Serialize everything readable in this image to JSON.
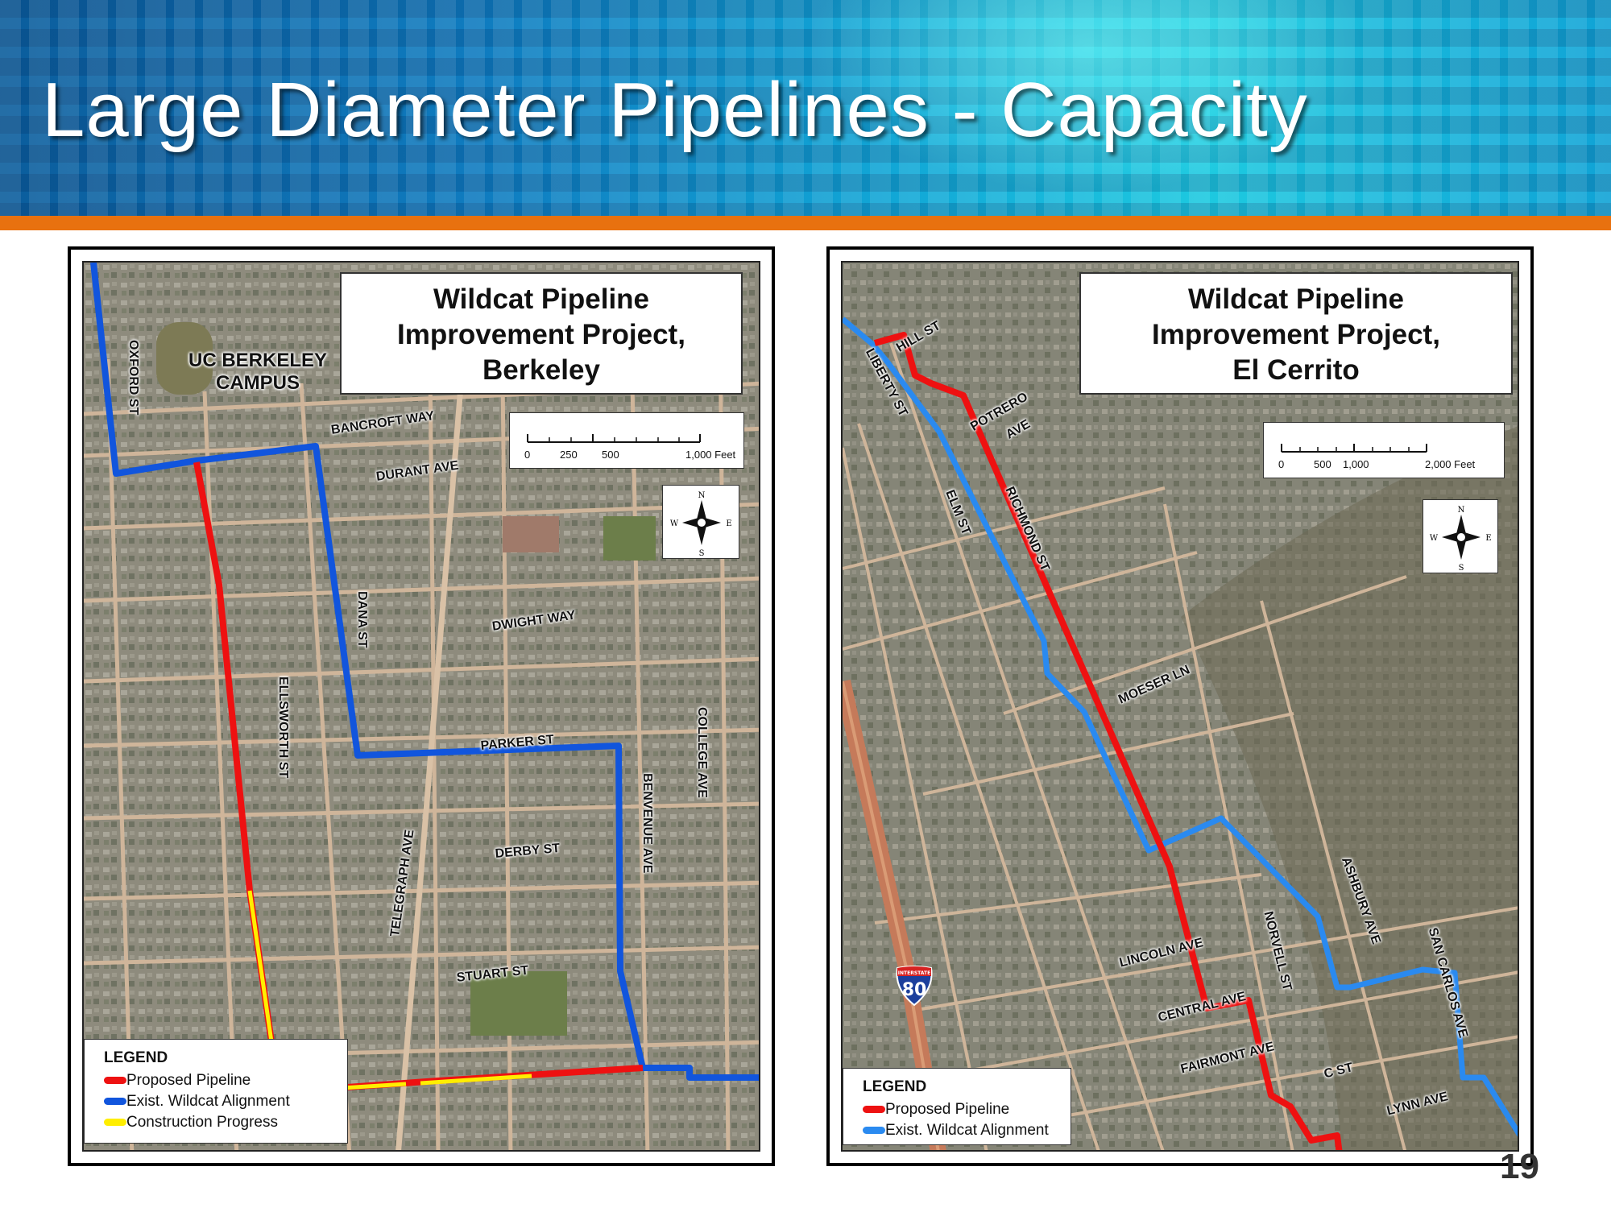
{
  "slide": {
    "title": "Large Diameter Pipelines - Capacity",
    "page_number": "19"
  },
  "colors": {
    "proposed_pipeline": "#ee1111",
    "existing_alignment_left": "#1155dd",
    "existing_alignment_right": "#2a8af0",
    "construction_progress": "#ffee00",
    "banner_accent": "#e8710f"
  },
  "map_left": {
    "title_lines": [
      "Wildcat Pipeline",
      "Improvement Project,",
      "Berkeley"
    ],
    "scale_labels": [
      "0",
      "250",
      "500",
      "1,000 Feet"
    ],
    "compass": [
      "N",
      "S",
      "E",
      "W"
    ],
    "campus_label": [
      "UC BERKELEY",
      "CAMPUS"
    ],
    "streets": {
      "oxford": "OXFORD ST",
      "bancroft": "BANCROFT WAY",
      "durant": "DURANT AVE",
      "dana": "DANA ST",
      "dwight": "DWIGHT WAY",
      "ellsworth": "ELLSWORTH ST",
      "college": "COLLEGE AVE",
      "parker": "PARKER ST",
      "benvenue": "BENVENUE AVE",
      "telegraph": "TELEGRAPH AVE",
      "derby": "DERBY ST",
      "stuart": "STUART ST"
    },
    "legend": {
      "title": "LEGEND",
      "items": [
        "Proposed Pipeline",
        "Exist. Wildcat Alignment",
        "Construction Progress"
      ]
    }
  },
  "map_right": {
    "title_lines": [
      "Wildcat Pipeline",
      "Improvement Project,",
      "El Cerrito"
    ],
    "scale_labels": [
      "0",
      "500",
      "1,000",
      "2,000 Feet"
    ],
    "compass": [
      "N",
      "S",
      "E",
      "W"
    ],
    "streets": {
      "hill": "HILL ST",
      "liberty": "LIBERTY ST",
      "potrero_1": "POTRERO",
      "potrero_2": "AVE",
      "elm": "ELM ST",
      "richmond": "RICHMOND ST",
      "moeser": "MOESER LN",
      "ashbury": "ASHBURY AVE",
      "lincoln": "LINCOLN AVE",
      "norvell": "NORVELL ST",
      "central": "CENTRAL AVE",
      "san_carlos": "SAN CARLOS AVE",
      "fairmont": "FAIRMONT AVE",
      "c_st": "C ST",
      "lynn": "LYNN AVE"
    },
    "interstate": {
      "label": "INTERSTATE",
      "number": "80"
    },
    "legend": {
      "title": "LEGEND",
      "items": [
        "Proposed Pipeline",
        "Exist. Wildcat Alignment"
      ]
    }
  }
}
